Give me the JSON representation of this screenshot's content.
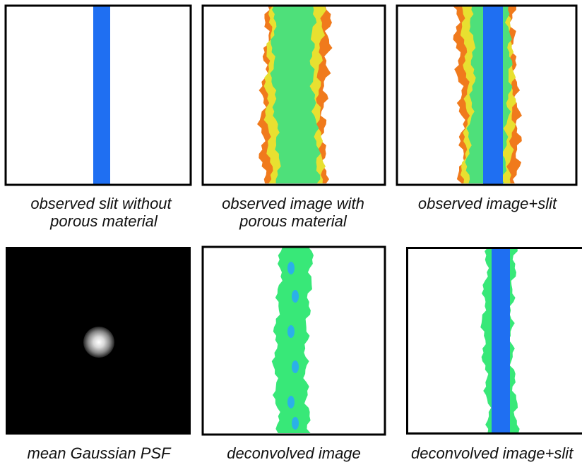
{
  "panels": [
    {
      "caption": [
        "observed slit without",
        "porous material"
      ]
    },
    {
      "caption": [
        "observed image with",
        "porous material"
      ]
    },
    {
      "caption": [
        "observed image+slit"
      ]
    },
    {
      "caption": [
        "mean Gaussian PSF"
      ]
    },
    {
      "caption": [
        "deconvolved image"
      ]
    },
    {
      "caption": [
        "deconvolved image+slit"
      ]
    }
  ]
}
